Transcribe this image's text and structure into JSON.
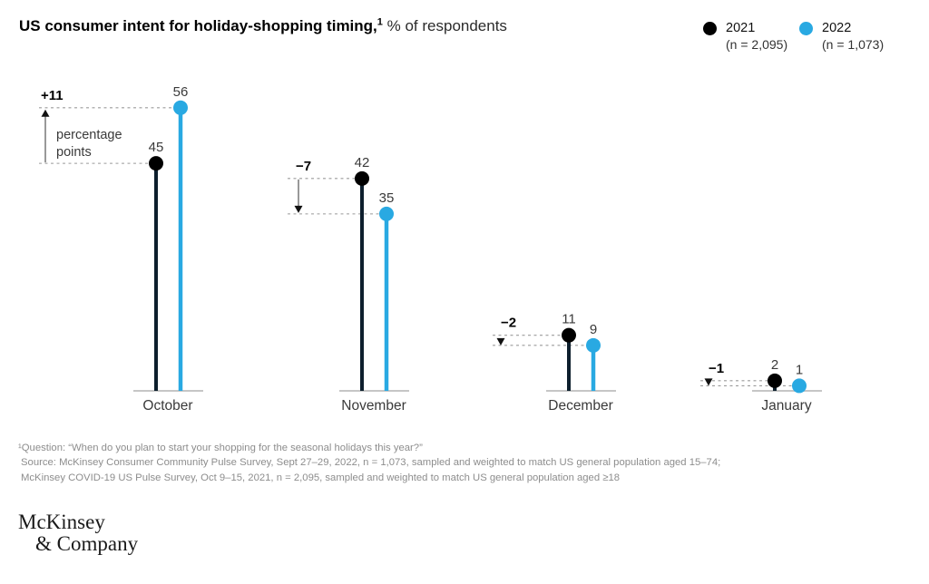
{
  "header": {
    "title_bold": "US consumer intent for holiday-shopping timing,",
    "title_sup": "1",
    "title_rest": " % of respondents"
  },
  "legend": [
    {
      "label": "2021",
      "sub": "(n = 2,095)",
      "color": "#000000"
    },
    {
      "label": "2022",
      "sub": "(n = 1,073)",
      "color": "#29a9e2"
    }
  ],
  "chart_data": {
    "type": "lollipop-comparison",
    "title": "US consumer intent for holiday-shopping timing, % of respondents",
    "categories": [
      "October",
      "November",
      "December",
      "January"
    ],
    "series": [
      {
        "name": "2021",
        "n": "2,095",
        "color": "#000000",
        "stem_color": "#0d1f2d",
        "values": [
          45,
          42,
          11,
          2
        ]
      },
      {
        "name": "2022",
        "n": "1,073",
        "color": "#29a9e2",
        "stem_color": "#29a9e2",
        "values": [
          56,
          35,
          9,
          1
        ]
      }
    ],
    "diffs": [
      {
        "label": "+11",
        "value": 11,
        "note_line1": "percentage",
        "note_line2": "points"
      },
      {
        "label": "−7",
        "value": -7
      },
      {
        "label": "−2",
        "value": -2
      },
      {
        "label": "−1",
        "value": -1
      }
    ],
    "ylim": [
      0,
      60
    ],
    "unit": "percentage points",
    "grid": false,
    "legend_position": "top-right",
    "dashed_line_color": "#9b9b9b",
    "baseline_color": "#c6c6c6",
    "value_label_color": "#3a3a3a"
  },
  "footnotes": {
    "question": "¹Question: “When do you plan to start your shopping for the seasonal holidays this year?”",
    "source1": "Source: McKinsey Consumer Community Pulse Survey, Sept 27–29, 2022, n = 1,073, sampled and weighted to match US general population aged 15–74;",
    "source2": "McKinsey COVID-19 US Pulse Survey, Oct 9–15, 2021, n = 2,095, sampled and weighted to match US general population aged ≥18"
  },
  "logo": {
    "line1": "McKinsey",
    "line2": "& Company"
  }
}
